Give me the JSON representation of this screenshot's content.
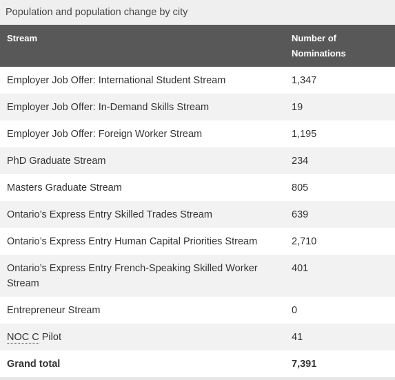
{
  "header": {
    "title": "Population and population change by city"
  },
  "table": {
    "columns": [
      "Stream",
      "Number of Nominations"
    ],
    "rows": [
      [
        "Employer Job Offer: International Student Stream",
        "1,347"
      ],
      [
        "Employer Job Offer: In-Demand Skills Stream",
        "19"
      ],
      [
        "Employer Job Offer: Foreign Worker Stream",
        "1,195"
      ],
      [
        "PhD Graduate Stream",
        "234"
      ],
      [
        "Masters Graduate Stream",
        "805"
      ],
      [
        "Ontario’s Express Entry Skilled Trades Stream",
        "639"
      ],
      [
        "Ontario’s Express Entry Human Capital Priorities Stream",
        "2,710"
      ],
      [
        "Ontario’s Express Entry French-Speaking Skilled Worker Stream",
        "401"
      ],
      [
        "Entrepreneur Stream",
        "0"
      ],
      [
        "NOC C Pilot",
        "41"
      ]
    ],
    "total": [
      "Grand total",
      "7,391"
    ]
  }
}
